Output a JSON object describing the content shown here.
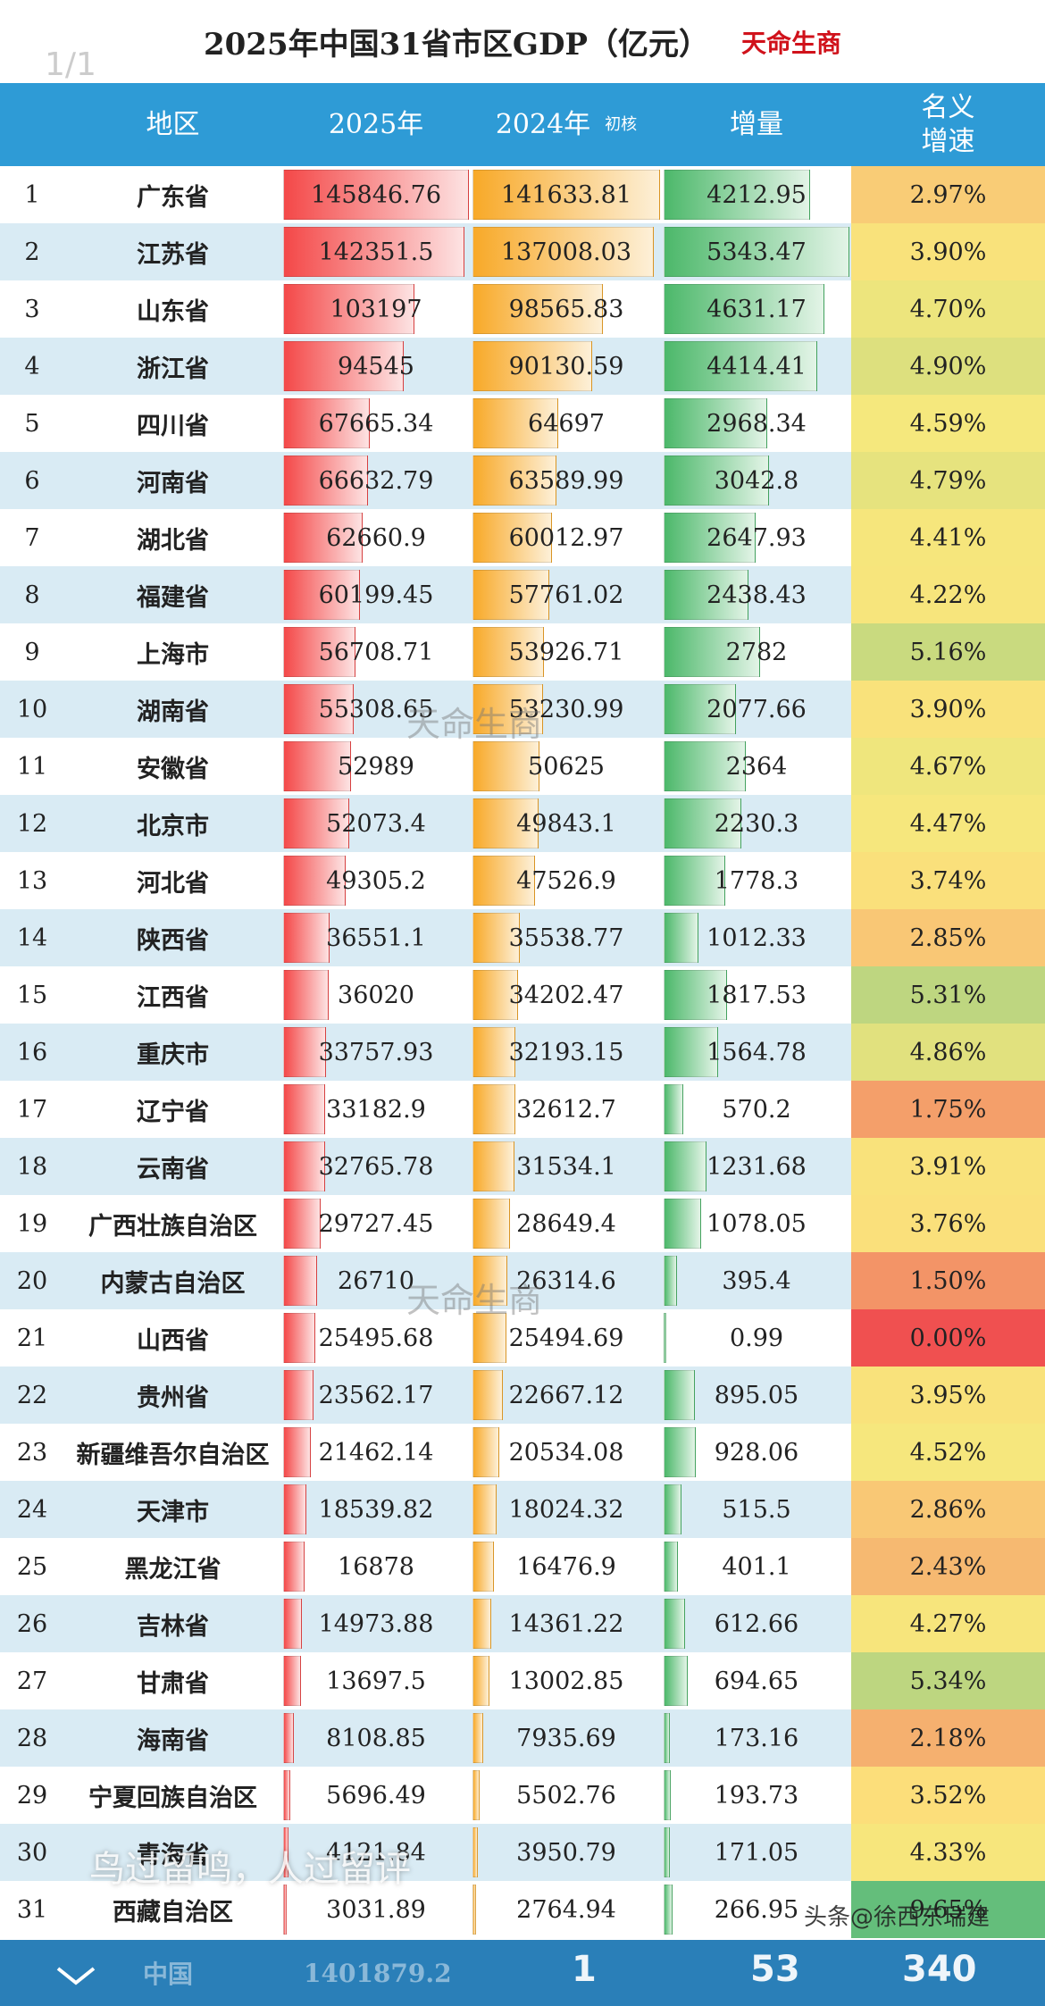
{
  "page_indicator": "1/1",
  "title": {
    "main": "2025年中国31省市区GDP（亿元）",
    "tag": "天命生商"
  },
  "header": {
    "region": "地区",
    "y2025": "2025年",
    "y2024": "2024年",
    "note": "初核",
    "increase": "增量",
    "rate": [
      "名义",
      "增速"
    ]
  },
  "rows": [
    [
      1,
      "广东省",
      "145846.76",
      "141633.81",
      "4212.95",
      "2.97%"
    ],
    [
      2,
      "江苏省",
      "142351.5",
      "137008.03",
      "5343.47",
      "3.90%"
    ],
    [
      3,
      "山东省",
      "103197",
      "98565.83",
      "4631.17",
      "4.70%"
    ],
    [
      4,
      "浙江省",
      "94545",
      "90130.59",
      "4414.41",
      "4.90%"
    ],
    [
      5,
      "四川省",
      "67665.34",
      "64697",
      "2968.34",
      "4.59%"
    ],
    [
      6,
      "河南省",
      "66632.79",
      "63589.99",
      "3042.8",
      "4.79%"
    ],
    [
      7,
      "湖北省",
      "62660.9",
      "60012.97",
      "2647.93",
      "4.41%"
    ],
    [
      8,
      "福建省",
      "60199.45",
      "57761.02",
      "2438.43",
      "4.22%"
    ],
    [
      9,
      "上海市",
      "56708.71",
      "53926.71",
      "2782",
      "5.16%"
    ],
    [
      10,
      "湖南省",
      "55308.65",
      "53230.99",
      "2077.66",
      "3.90%"
    ],
    [
      11,
      "安徽省",
      "52989",
      "50625",
      "2364",
      "4.67%"
    ],
    [
      12,
      "北京市",
      "52073.4",
      "49843.1",
      "2230.3",
      "4.47%"
    ],
    [
      13,
      "河北省",
      "49305.2",
      "47526.9",
      "1778.3",
      "3.74%"
    ],
    [
      14,
      "陕西省",
      "36551.1",
      "35538.77",
      "1012.33",
      "2.85%"
    ],
    [
      15,
      "江西省",
      "36020",
      "34202.47",
      "1817.53",
      "5.31%"
    ],
    [
      16,
      "重庆市",
      "33757.93",
      "32193.15",
      "1564.78",
      "4.86%"
    ],
    [
      17,
      "辽宁省",
      "33182.9",
      "32612.7",
      "570.2",
      "1.75%"
    ],
    [
      18,
      "云南省",
      "32765.78",
      "31534.1",
      "1231.68",
      "3.91%"
    ],
    [
      19,
      "广西壮族自治区",
      "29727.45",
      "28649.4",
      "1078.05",
      "3.76%"
    ],
    [
      20,
      "内蒙古自治区",
      "26710",
      "26314.6",
      "395.4",
      "1.50%"
    ],
    [
      21,
      "山西省",
      "25495.68",
      "25494.69",
      "0.99",
      "0.00%"
    ],
    [
      22,
      "贵州省",
      "23562.17",
      "22667.12",
      "895.05",
      "3.95%"
    ],
    [
      23,
      "新疆维吾尔自治区",
      "21462.14",
      "20534.08",
      "928.06",
      "4.52%"
    ],
    [
      24,
      "天津市",
      "18539.82",
      "18024.32",
      "515.5",
      "2.86%"
    ],
    [
      25,
      "黑龙江省",
      "16878",
      "16476.9",
      "401.1",
      "2.43%"
    ],
    [
      26,
      "吉林省",
      "14973.88",
      "14361.22",
      "612.66",
      "4.27%"
    ],
    [
      27,
      "甘肃省",
      "13697.5",
      "13002.85",
      "694.65",
      "5.34%"
    ],
    [
      28,
      "海南省",
      "8108.85",
      "7935.69",
      "173.16",
      "2.18%"
    ],
    [
      29,
      "宁夏回族自治区",
      "5696.49",
      "5502.76",
      "193.73",
      "3.52%"
    ],
    [
      30,
      "青海省",
      "4121.84",
      "3950.79",
      "171.05",
      "4.33%"
    ],
    [
      31,
      "西藏自治区",
      "3031.89",
      "2764.94",
      "266.95",
      "9.65%"
    ]
  ],
  "footer": {
    "label": "中国",
    "total_2025": "1401879.2"
  },
  "watermark": "天命生商",
  "overlay": {
    "comment_prompt": "鸟过留鸣，人过留评",
    "share": "1",
    "comments": "53",
    "likes": "340",
    "source": "头条@徐西东瑞建"
  }
}
